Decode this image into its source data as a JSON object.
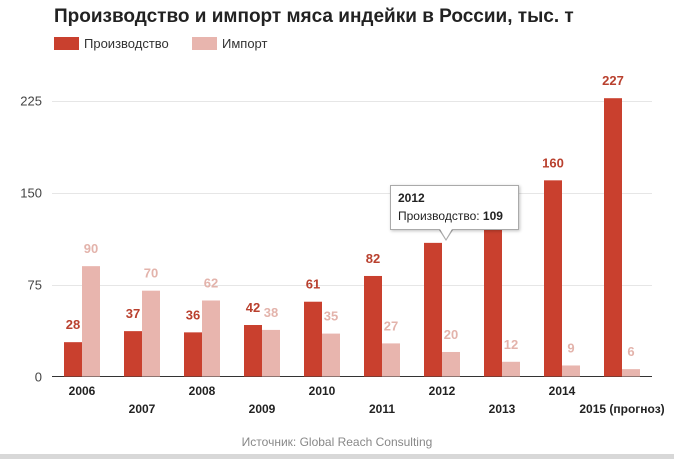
{
  "chart_data": {
    "type": "bar",
    "title": "Производство и импорт мяса индейки в России, тыс. т",
    "categories": [
      "2006",
      "2007",
      "2008",
      "2009",
      "2010",
      "2011",
      "2012",
      "2013",
      "2014",
      "2015 (прогноз)"
    ],
    "series": [
      {
        "name": "Производство",
        "color": "#c9402e",
        "values": [
          28,
          37,
          36,
          42,
          61,
          82,
          109,
          123,
          160,
          227
        ]
      },
      {
        "name": "Импорт",
        "color": "#e8b5ae",
        "values": [
          90,
          70,
          62,
          38,
          35,
          27,
          20,
          12,
          9,
          6
        ]
      }
    ],
    "ylim": [
      0,
      250
    ],
    "yticks": [
      0,
      75,
      150,
      225
    ],
    "xlabel": "",
    "ylabel": "",
    "legend_position": "top-left",
    "source": "Источник: Global Reach Consulting",
    "tooltip": {
      "year": "2012",
      "series_label": "Производство:",
      "value": "109"
    }
  }
}
